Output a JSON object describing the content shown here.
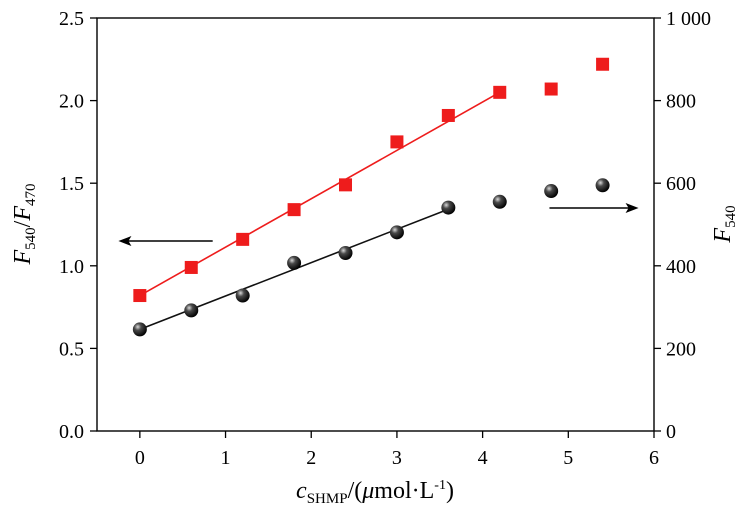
{
  "chart_data": {
    "type": "scatter",
    "title": "",
    "x_axis": {
      "label": "c_SHMP/(μmol·L⁻¹)",
      "label_parts": {
        "c": "c",
        "sub": "SHMP",
        "rest": "/(",
        "mu": "μ",
        "unit": "mol·L",
        "sup": "-1",
        "close": ")"
      },
      "range": [
        -0.5,
        6
      ],
      "ticks": [
        0,
        1,
        2,
        3,
        4,
        5,
        6
      ],
      "tick_labels": [
        "0",
        "1",
        "2",
        "3",
        "4",
        "5",
        "6"
      ]
    },
    "y_axis_left": {
      "label": "F540/F470",
      "label_parts": {
        "f1": "F",
        "s1": "540",
        "slash": "/",
        "f2": "F",
        "s2": "470"
      },
      "range": [
        0,
        2.5
      ],
      "ticks": [
        0,
        0.5,
        1,
        1.5,
        2,
        2.5
      ],
      "tick_labels": [
        "0.0",
        "0.5",
        "1.0",
        "1.5",
        "2.0",
        "2.5"
      ]
    },
    "y_axis_right": {
      "label": "F540",
      "label_parts": {
        "f": "F",
        "s": "540"
      },
      "range": [
        0,
        1000
      ],
      "ticks": [
        0,
        200,
        400,
        600,
        800,
        1000
      ],
      "tick_labels": [
        "0",
        "200",
        "400",
        "600",
        "800",
        "1 000"
      ]
    },
    "series": [
      {
        "axis": "left",
        "marker": "square",
        "color": "#ee1c1c",
        "x": [
          0,
          0.6,
          1.2,
          1.8,
          2.4,
          3.0,
          3.6,
          4.2,
          4.8,
          5.4
        ],
        "y": [
          0.82,
          0.99,
          1.16,
          1.34,
          1.49,
          1.75,
          1.91,
          2.05,
          2.07,
          2.22
        ],
        "fit": {
          "x": [
            0,
            4.2
          ],
          "y": [
            0.82,
            2.05
          ]
        }
      },
      {
        "axis": "right",
        "marker": "sphere",
        "color": "#111111",
        "x": [
          0,
          0.6,
          1.2,
          1.8,
          2.4,
          3.0,
          3.6,
          4.2,
          4.8,
          5.4
        ],
        "y": [
          246,
          292,
          328,
          407,
          431,
          481,
          541,
          555,
          581,
          595
        ],
        "fit": {
          "x": [
            0,
            3.6
          ],
          "y": [
            246,
            537
          ]
        }
      }
    ],
    "annotations": [
      {
        "type": "arrow",
        "direction": "left",
        "points_to_axis": "left",
        "y_axis": "left",
        "y": 1.15,
        "x_from": 0.85,
        "x_to": -0.25
      },
      {
        "type": "arrow",
        "direction": "right",
        "points_to_axis": "right",
        "y_axis": "right",
        "y": 540,
        "x_from": 4.78,
        "x_to": 5.82
      }
    ],
    "grid": false,
    "legend": "none"
  }
}
